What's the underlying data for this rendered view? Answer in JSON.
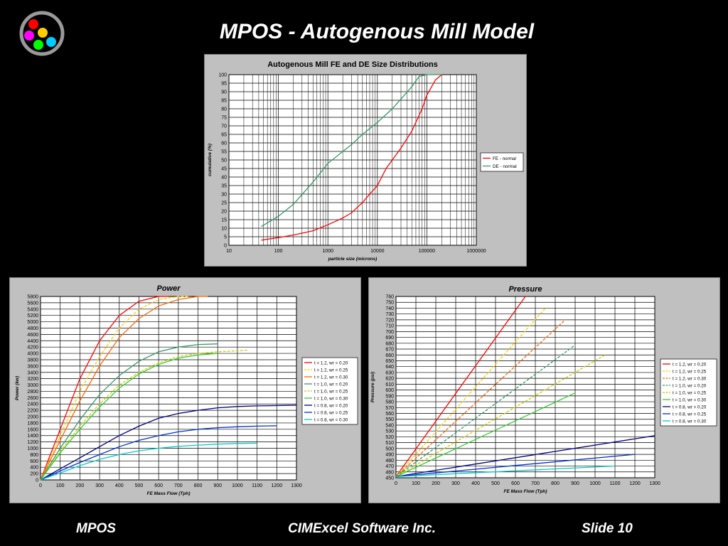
{
  "header": {
    "title": "MPOS - Autogenous Mill Model"
  },
  "footer": {
    "left": "MPOS",
    "center": "CIMExcel Software Inc.",
    "right": "Slide 10"
  },
  "logo": {
    "colors": [
      "#ff0000",
      "#ffcc00",
      "#ff00ff",
      "#00ff00",
      "#00ccff"
    ]
  },
  "chart_data": [
    {
      "type": "line",
      "title": "Autogenous Mill FE and DE Size Distributions",
      "xlabel": "particle size (microns)",
      "ylabel": "cumulative (%)",
      "xscale": "log",
      "xlim": [
        10,
        1000000
      ],
      "ylim": [
        0,
        100
      ],
      "xticks": [
        10,
        100,
        1000,
        10000,
        100000,
        1000000
      ],
      "xtick_labels": [
        "10",
        "100",
        "1000",
        "10000",
        "100000",
        "1000000"
      ],
      "yticks": [
        0,
        5,
        10,
        15,
        20,
        25,
        30,
        35,
        40,
        45,
        50,
        55,
        60,
        65,
        70,
        75,
        80,
        85,
        90,
        95,
        100
      ],
      "grid": true,
      "legend": "right",
      "series": [
        {
          "name": "FE - normal",
          "color": "#ff0000",
          "x": [
            45,
            100,
            200,
            500,
            1000,
            2000,
            3000,
            5000,
            7000,
            10000,
            15000,
            20000,
            30000,
            50000,
            80000,
            100000,
            150000,
            200000
          ],
          "y": [
            3,
            4.5,
            6,
            8.5,
            12,
            16,
            19,
            25,
            30,
            35,
            45,
            50,
            57,
            67,
            80,
            88,
            97,
            100
          ]
        },
        {
          "name": "DE - normal",
          "color": "#339966",
          "x": [
            45,
            100,
            200,
            500,
            1000,
            2000,
            3000,
            5000,
            10000,
            20000,
            50000,
            70000,
            100000,
            150000,
            200000
          ],
          "y": [
            11,
            17,
            24,
            37,
            48,
            55,
            59,
            65,
            72,
            80,
            93,
            99,
            100,
            100,
            100
          ]
        }
      ]
    },
    {
      "type": "line",
      "title": "Power",
      "xlabel": "FE Mass Flow (Tph)",
      "ylabel": "Power (kw)",
      "xlim": [
        0,
        1300
      ],
      "ylim": [
        0,
        5800
      ],
      "xticks": [
        0,
        100,
        200,
        300,
        400,
        500,
        600,
        700,
        800,
        900,
        1000,
        1100,
        1200,
        1300
      ],
      "yticks": [
        0,
        200,
        400,
        600,
        800,
        1000,
        1200,
        1400,
        1600,
        1800,
        2000,
        2200,
        2400,
        2600,
        2800,
        3000,
        3200,
        3400,
        3600,
        3800,
        4000,
        4200,
        4400,
        4600,
        4800,
        5000,
        5200,
        5400,
        5600,
        5800
      ],
      "grid": true,
      "legend": "right",
      "series": [
        {
          "name": "t = 1.2, wr = 0.20",
          "color": "#ff0000",
          "dashed": false,
          "x": [
            0,
            100,
            200,
            300,
            400,
            500,
            600,
            650
          ],
          "y": [
            0,
            1600,
            3200,
            4400,
            5200,
            5650,
            5800,
            5800
          ]
        },
        {
          "name": "t = 1.2, wr = 0.25",
          "color": "#ffcc00",
          "dashed": true,
          "x": [
            0,
            100,
            200,
            300,
            400,
            500,
            600,
            700,
            750
          ],
          "y": [
            0,
            1400,
            2800,
            3900,
            4800,
            5400,
            5700,
            5800,
            5800
          ]
        },
        {
          "name": "t = 1.2, wr = 0.30",
          "color": "#ff6600",
          "dashed": false,
          "x": [
            0,
            100,
            200,
            300,
            400,
            500,
            600,
            700,
            800,
            850
          ],
          "y": [
            0,
            1250,
            2500,
            3600,
            4500,
            5100,
            5500,
            5700,
            5800,
            5800
          ]
        },
        {
          "name": "t = 1.0, wr = 0.20",
          "color": "#339966",
          "dashed": false,
          "x": [
            0,
            100,
            200,
            300,
            400,
            500,
            600,
            700,
            800,
            900
          ],
          "y": [
            0,
            1000,
            1900,
            2700,
            3300,
            3750,
            4050,
            4200,
            4280,
            4300
          ]
        },
        {
          "name": "t = 1.0, wr = 0.25",
          "color": "#cccc00",
          "dashed": true,
          "x": [
            0,
            100,
            200,
            300,
            400,
            500,
            600,
            700,
            800,
            900,
            1000,
            1050
          ],
          "y": [
            0,
            900,
            1700,
            2400,
            3000,
            3400,
            3700,
            3900,
            4000,
            4050,
            4080,
            4100
          ]
        },
        {
          "name": "t = 1.0, wr = 0.30",
          "color": "#33cc33",
          "dashed": false,
          "x": [
            0,
            100,
            200,
            300,
            400,
            500,
            600,
            700,
            800,
            900
          ],
          "y": [
            0,
            850,
            1600,
            2300,
            2900,
            3350,
            3650,
            3850,
            3950,
            4000
          ]
        },
        {
          "name": "t = 0.8, wr = 0.20",
          "color": "#000080",
          "dashed": false,
          "x": [
            0,
            100,
            200,
            300,
            400,
            500,
            600,
            700,
            800,
            900,
            1000,
            1100,
            1200,
            1300
          ],
          "y": [
            0,
            350,
            700,
            1050,
            1400,
            1700,
            1950,
            2100,
            2200,
            2280,
            2320,
            2340,
            2350,
            2360
          ]
        },
        {
          "name": "t = 0.8, wr = 0.25",
          "color": "#0033cc",
          "dashed": false,
          "x": [
            0,
            100,
            200,
            300,
            400,
            500,
            600,
            700,
            800,
            900,
            1000,
            1100,
            1200
          ],
          "y": [
            0,
            280,
            550,
            800,
            1050,
            1250,
            1400,
            1520,
            1600,
            1650,
            1680,
            1700,
            1710
          ]
        },
        {
          "name": "t = 0.8, wr = 0.30",
          "color": "#00cccc",
          "dashed": false,
          "x": [
            0,
            100,
            200,
            300,
            400,
            500,
            600,
            700,
            800,
            900,
            1000,
            1100
          ],
          "y": [
            0,
            220,
            450,
            650,
            800,
            920,
            1000,
            1060,
            1100,
            1130,
            1150,
            1160
          ]
        }
      ]
    },
    {
      "type": "line",
      "title": "Pressure",
      "xlabel": "FE Mass Flow (Tph)",
      "ylabel": "Pressure (psi)",
      "xlim": [
        0,
        1300
      ],
      "ylim": [
        450,
        760
      ],
      "xticks": [
        0,
        100,
        200,
        300,
        400,
        500,
        600,
        700,
        800,
        900,
        1000,
        1100,
        1200,
        1300
      ],
      "yticks": [
        450,
        460,
        470,
        480,
        490,
        500,
        510,
        520,
        530,
        540,
        550,
        560,
        570,
        580,
        590,
        600,
        610,
        620,
        630,
        640,
        650,
        660,
        670,
        680,
        690,
        700,
        710,
        720,
        730,
        740,
        750,
        760
      ],
      "grid": true,
      "legend": "right",
      "series": [
        {
          "name": "t = 1.2, wr = 0.20",
          "color": "#ff0000",
          "dashed": false,
          "x": [
            0,
            650
          ],
          "y": [
            452,
            760
          ]
        },
        {
          "name": "t = 1.2, wr = 0.25",
          "color": "#ffcc00",
          "dashed": true,
          "x": [
            0,
            750
          ],
          "y": [
            452,
            740
          ]
        },
        {
          "name": "t = 1.2, wr = 0.30",
          "color": "#ff6600",
          "dashed": true,
          "x": [
            0,
            850
          ],
          "y": [
            452,
            720
          ]
        },
        {
          "name": "t = 1.0, wr = 0.20",
          "color": "#339966",
          "dashed": true,
          "x": [
            0,
            900
          ],
          "y": [
            452,
            677
          ]
        },
        {
          "name": "t = 1.0, wr = 0.25",
          "color": "#cccc00",
          "dashed": true,
          "x": [
            0,
            1050
          ],
          "y": [
            452,
            660
          ]
        },
        {
          "name": "t = 1.0, wr = 0.30",
          "color": "#33cc33",
          "dashed": false,
          "x": [
            0,
            900
          ],
          "y": [
            452,
            595
          ]
        },
        {
          "name": "t = 0.8, wr = 0.20",
          "color": "#000080",
          "dashed": false,
          "x": [
            0,
            1300
          ],
          "y": [
            452,
            522
          ]
        },
        {
          "name": "t = 0.8, wr = 0.25",
          "color": "#0033cc",
          "dashed": false,
          "x": [
            0,
            1200
          ],
          "y": [
            452,
            490
          ]
        },
        {
          "name": "t = 0.8, wr = 0.30",
          "color": "#00cccc",
          "dashed": false,
          "x": [
            0,
            1100
          ],
          "y": [
            452,
            470
          ]
        }
      ]
    }
  ]
}
